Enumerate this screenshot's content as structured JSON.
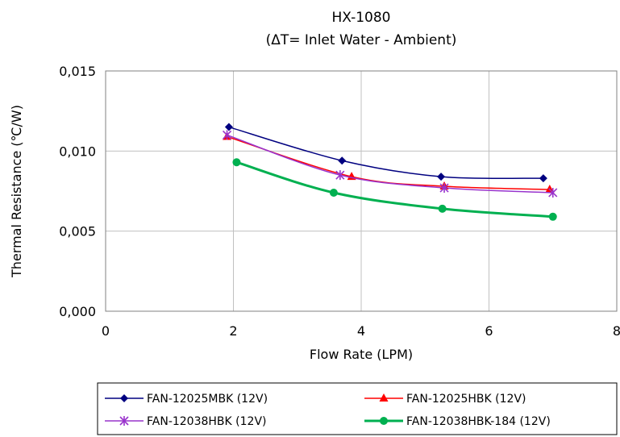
{
  "chart_data": {
    "type": "line",
    "title": "HX-1080",
    "subtitle": "(ΔT= Inlet Water - Ambient)",
    "xlabel": "Flow Rate (LPM)",
    "ylabel": "Thermal Resistance (℃/W)",
    "xlim": [
      0,
      8
    ],
    "ylim": [
      0,
      0.015
    ],
    "xticks": [
      "0",
      "2",
      "4",
      "6",
      "8"
    ],
    "yticks": [
      "0,000",
      "0,005",
      "0,010",
      "0,015"
    ],
    "xtick_values": [
      0,
      2,
      4,
      6,
      8
    ],
    "ytick_values": [
      0,
      0.005,
      0.01,
      0.015
    ],
    "grid": true,
    "legend_position": "bottom",
    "series": [
      {
        "name": "FAN-12025MBK (12V)",
        "color": "#000080",
        "marker": "diamond",
        "x": [
          1.93,
          3.7,
          5.25,
          6.85
        ],
        "y": [
          0.0115,
          0.0094,
          0.0084,
          0.0083
        ]
      },
      {
        "name": "FAN-12025HBK (12V)",
        "color": "#ff0000",
        "marker": "triangle",
        "x": [
          1.9,
          3.85,
          5.3,
          6.95
        ],
        "y": [
          0.0109,
          0.0084,
          0.0078,
          0.0076
        ]
      },
      {
        "name": "FAN-12038HBK (12V)",
        "color": "#9933cc",
        "marker": "asterisk",
        "x": [
          1.9,
          3.67,
          5.3,
          7.0
        ],
        "y": [
          0.011,
          0.0085,
          0.0077,
          0.0074
        ]
      },
      {
        "name": "FAN-12038HBK-184 (12V)",
        "color": "#00b050",
        "marker": "circle",
        "x": [
          2.05,
          3.57,
          5.27,
          7.0
        ],
        "y": [
          0.0093,
          0.0074,
          0.0064,
          0.0059
        ]
      }
    ]
  }
}
